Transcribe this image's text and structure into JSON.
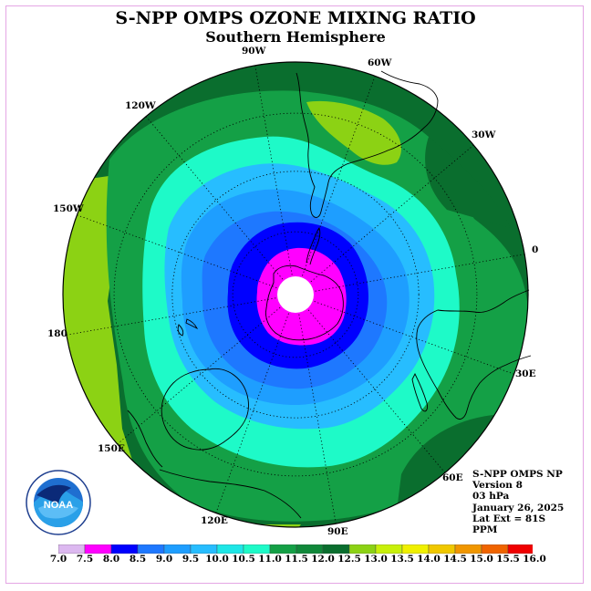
{
  "title": "S-NPP OMPS OZONE MIXING RATIO",
  "subtitle": "Southern Hemisphere",
  "longitude_labels": [
    "90W",
    "60W",
    "30W",
    "0",
    "30E",
    "60E",
    "90E",
    "120E",
    "150E",
    "180",
    "150W",
    "120W"
  ],
  "info": {
    "instrument": "S-NPP OMPS NP",
    "version": "Version 8",
    "level": "03 hPa",
    "date": "January 26, 2025",
    "lat_ext": "Lat Ext = 81S",
    "units": "PPM"
  },
  "logo_text": "NOAA",
  "colorbar": {
    "ticks": [
      "7.0",
      "7.5",
      "8.0",
      "8.5",
      "9.0",
      "9.5",
      "10.0",
      "10.5",
      "11.0",
      "11.5",
      "12.0",
      "12.5",
      "13.0",
      "13.5",
      "14.0",
      "14.5",
      "15.0",
      "15.5",
      "16.0"
    ],
    "colors": [
      "#b385f0",
      "#dcb8f0",
      "#ff00ff",
      "#0000ff",
      "#1e78ff",
      "#1e9eff",
      "#27bdff",
      "#1ee6e6",
      "#1efac8",
      "#14a046",
      "#10883a",
      "#0a6e2e",
      "#8cd214",
      "#c8f00a",
      "#f0f000",
      "#f0c800",
      "#f09600",
      "#f06400",
      "#f00000",
      "#b40000",
      "#8c5a3c"
    ]
  }
}
